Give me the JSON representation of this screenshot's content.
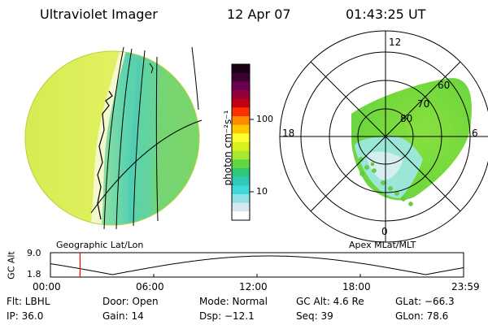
{
  "header": {
    "title": "Ultraviolet Imager",
    "date": "12 Apr 07",
    "time": "01:43:25 UT"
  },
  "colorbar": {
    "unit_label": "photon cm⁻²s⁻¹",
    "tick_labels": [
      "100",
      "10"
    ],
    "colors_top_to_bottom": [
      "#1a0014",
      "#3c0030",
      "#6a0050",
      "#90003a",
      "#c00010",
      "#ff3000",
      "#ff8c00",
      "#ffc800",
      "#ffff30",
      "#d8f020",
      "#a8e830",
      "#60d840",
      "#30c878",
      "#30c8b8",
      "#40d8d8",
      "#90e0e8",
      "#d8e8f0",
      "#ffffff"
    ]
  },
  "geo_panel": {
    "label": "Geographic Lat/Lon",
    "colors": {
      "day": "#e3f05a",
      "terminator": "#f4f8c8",
      "mid": "#5ad6a8",
      "green": "#78d24c"
    }
  },
  "polar_panel": {
    "label": "Apex MLat/MLT",
    "mlt_labels": {
      "top": "12",
      "left": "18",
      "right": "6",
      "bottom": "0"
    },
    "lat_labels": [
      "60",
      "70",
      "80"
    ],
    "colors": {
      "oval": "#72d83c",
      "cyan": "#7fe0e0",
      "dots": "#6ad040"
    }
  },
  "altitude_plot": {
    "ylabel": "GC Alt",
    "ytick_top": "9.0",
    "ytick_bottom": "1.8",
    "x_ticks": [
      "00:00",
      "06:00",
      "12:00",
      "18:00",
      "23:59"
    ],
    "current_time_marker_hours": 1.72,
    "marker_color": "#ff0000"
  },
  "info": {
    "flt": "Flt: LBHL",
    "ip": "IP: 36.0",
    "door": "Door: Open",
    "gain": "Gain: 14",
    "mode": "Mode: Normal",
    "dsp": "Dsp:  −12.1",
    "gc_alt": "GC Alt: 4.6 Re",
    "seq": "Seq: 39",
    "glat": "GLat: −66.3",
    "glon": "GLon: 78.6"
  }
}
